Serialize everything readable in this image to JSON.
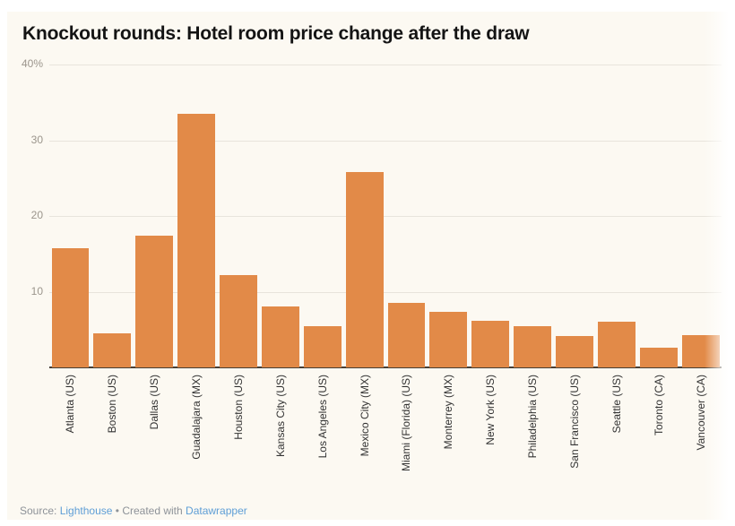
{
  "header": {
    "title": "Knockout rounds: Hotel room price change after the draw"
  },
  "chart_data": {
    "type": "bar",
    "title": "Knockout rounds: Hotel room price change after the draw",
    "categories": [
      "Atlanta (US)",
      "Boston (US)",
      "Dallas (US)",
      "Guadalajara (MX)",
      "Houston (US)",
      "Kansas City (US)",
      "Los Angeles (US)",
      "Mexico City (MX)",
      "Miami (Florida) (US)",
      "Monterrey (MX)",
      "New York (US)",
      "Philadelphia (US)",
      "San Francisco (US)",
      "Seattle (US)",
      "Toronto (CA)",
      "Vancouver (CA)"
    ],
    "values": [
      15.7,
      4.5,
      17.4,
      33.5,
      12.2,
      8.0,
      5.4,
      25.8,
      8.5,
      7.3,
      6.1,
      5.5,
      4.1,
      6.0,
      2.6,
      4.3
    ],
    "unit": "%",
    "xlabel": "",
    "ylabel": "",
    "ylim": [
      0,
      40
    ],
    "yticks": [
      {
        "value": 10,
        "label": "10"
      },
      {
        "value": 20,
        "label": "20"
      },
      {
        "value": 30,
        "label": "30"
      },
      {
        "value": 40,
        "label": "40%"
      }
    ],
    "grid": true,
    "legend": "none",
    "bar_color": "#E28A48"
  },
  "footer": {
    "source_prefix": "Source:",
    "source_link": "Lighthouse",
    "separator": "•",
    "created_with_prefix": "Created with",
    "created_with_link": "Datawrapper"
  },
  "colors": {
    "background": "#FCF9F2",
    "bar": "#E28A48",
    "gridline": "#E8E4DC",
    "axis_tick_text": "#9B958C",
    "category_text": "#333333",
    "baseline": "#473F35",
    "title_text": "#141414",
    "footer_text": "#8D9298",
    "link": "#5E9ED6"
  }
}
